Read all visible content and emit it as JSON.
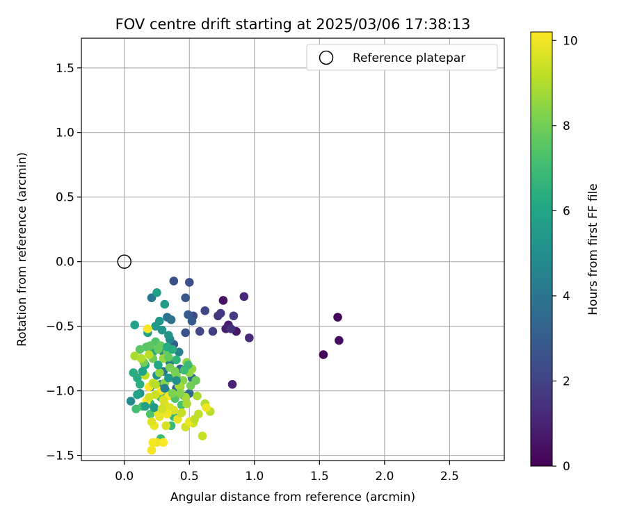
{
  "chart_data": {
    "type": "scatter",
    "title": "FOV centre drift starting at 2025/03/06 17:38:13",
    "xlabel": "Angular distance from reference (arcmin)",
    "ylabel": "Rotation from reference (arcmin)",
    "xlim": [
      -0.33,
      2.92
    ],
    "ylim": [
      -1.54,
      1.73
    ],
    "xticks": [
      0.0,
      0.5,
      1.0,
      1.5,
      2.0,
      2.5
    ],
    "xtick_labels": [
      "0.0",
      "0.5",
      "1.0",
      "1.5",
      "2.0",
      "2.5"
    ],
    "yticks": [
      -1.5,
      -1.0,
      -0.5,
      0.0,
      0.5,
      1.0,
      1.5
    ],
    "ytick_labels": [
      "−1.5",
      "−1.0",
      "−0.5",
      "0.0",
      "0.5",
      "1.0",
      "1.5"
    ],
    "grid": true,
    "legend": {
      "position": "top-right",
      "entries": [
        "Reference platepar"
      ]
    },
    "reference": {
      "name": "Reference platepar",
      "x": 0.0,
      "y": 0.0
    },
    "colorbar": {
      "label": "Hours from first FF file",
      "min": 0,
      "max": 10.2,
      "ticks": [
        0,
        2,
        4,
        6,
        8,
        10
      ],
      "tick_labels": [
        "0",
        "2",
        "4",
        "6",
        "8",
        "10"
      ],
      "colormap": "viridis"
    },
    "points": [
      [
        1.53,
        -0.72,
        0.1
      ],
      [
        1.64,
        -0.43,
        0.2
      ],
      [
        1.65,
        -0.61,
        0.3
      ],
      [
        0.76,
        -0.3,
        0.5
      ],
      [
        0.86,
        -0.54,
        0.6
      ],
      [
        0.8,
        -0.49,
        0.8
      ],
      [
        0.78,
        -0.52,
        0.9
      ],
      [
        0.83,
        -0.95,
        1.0
      ],
      [
        0.92,
        -0.27,
        1.1
      ],
      [
        0.96,
        -0.59,
        1.2
      ],
      [
        0.82,
        -0.52,
        1.4
      ],
      [
        0.72,
        -0.42,
        1.6
      ],
      [
        0.74,
        -0.4,
        1.7
      ],
      [
        0.84,
        -0.42,
        1.8
      ],
      [
        0.68,
        -0.54,
        1.9
      ],
      [
        0.58,
        -0.54,
        2.1
      ],
      [
        0.62,
        -0.38,
        2.2
      ],
      [
        0.53,
        -0.42,
        2.3
      ],
      [
        0.5,
        -0.16,
        2.4
      ],
      [
        0.38,
        -0.15,
        2.5
      ],
      [
        0.47,
        -0.55,
        2.6
      ],
      [
        0.47,
        -0.28,
        2.8
      ],
      [
        0.52,
        -0.46,
        2.9
      ],
      [
        0.49,
        -0.41,
        3.0
      ],
      [
        0.38,
        -0.64,
        3.1
      ],
      [
        0.43,
        -0.83,
        3.2
      ],
      [
        0.45,
        -0.92,
        3.3
      ],
      [
        0.4,
        -0.98,
        3.4
      ],
      [
        0.5,
        -1.02,
        3.5
      ],
      [
        0.52,
        -0.9,
        3.6
      ],
      [
        0.46,
        -1.04,
        3.7
      ],
      [
        0.36,
        -0.45,
        3.8
      ],
      [
        0.33,
        -0.43,
        3.9
      ],
      [
        0.21,
        -0.28,
        4.0
      ],
      [
        0.3,
        -0.85,
        4.1
      ],
      [
        0.28,
        -0.95,
        4.2
      ],
      [
        0.35,
        -0.78,
        4.3
      ],
      [
        0.42,
        -0.7,
        4.4
      ],
      [
        0.35,
        -0.6,
        4.6
      ],
      [
        0.3,
        -0.7,
        4.7
      ],
      [
        0.05,
        -1.08,
        4.8
      ],
      [
        0.12,
        -1.02,
        4.9
      ],
      [
        0.2,
        -0.97,
        5.0
      ],
      [
        0.25,
        -0.88,
        5.1
      ],
      [
        0.34,
        -0.57,
        5.2
      ],
      [
        0.29,
        -0.53,
        5.3
      ],
      [
        0.27,
        -0.46,
        5.4
      ],
      [
        0.24,
        -0.5,
        5.5
      ],
      [
        0.31,
        -0.33,
        5.6
      ],
      [
        0.25,
        -0.24,
        5.7
      ],
      [
        0.08,
        -0.49,
        5.8
      ],
      [
        0.18,
        -0.55,
        5.9
      ],
      [
        0.22,
        -0.7,
        6.0
      ],
      [
        0.16,
        -0.8,
        6.1
      ],
      [
        0.1,
        -0.9,
        6.2
      ],
      [
        0.07,
        -0.86,
        6.3
      ],
      [
        0.12,
        -0.95,
        6.4
      ],
      [
        0.28,
        -1.05,
        6.5
      ],
      [
        0.2,
        -1.1,
        6.6
      ],
      [
        0.32,
        -1.0,
        6.7
      ],
      [
        0.38,
        -1.2,
        6.8
      ],
      [
        0.36,
        -1.27,
        6.9
      ],
      [
        0.28,
        -1.37,
        7.0
      ],
      [
        0.09,
        -1.14,
        7.1
      ],
      [
        0.14,
        -1.12,
        7.2
      ],
      [
        0.2,
        -1.18,
        7.3
      ],
      [
        0.24,
        -0.62,
        7.4
      ],
      [
        0.17,
        -0.66,
        7.5
      ],
      [
        0.12,
        -0.68,
        7.6
      ],
      [
        0.28,
        -0.65,
        7.7
      ],
      [
        0.33,
        -0.7,
        7.8
      ],
      [
        0.22,
        -0.75,
        7.9
      ],
      [
        0.15,
        -0.78,
        8.0
      ],
      [
        0.35,
        -0.82,
        8.1
      ],
      [
        0.4,
        -0.88,
        8.2
      ],
      [
        0.45,
        -0.92,
        8.3
      ],
      [
        0.5,
        -0.86,
        8.4
      ],
      [
        0.48,
        -0.78,
        8.5
      ],
      [
        0.52,
        -0.83,
        8.6
      ],
      [
        0.43,
        -0.97,
        8.7
      ],
      [
        0.47,
        -1.05,
        8.8
      ],
      [
        0.56,
        -1.04,
        8.9
      ],
      [
        0.62,
        -1.1,
        9.0
      ],
      [
        0.66,
        -1.16,
        9.1
      ],
      [
        0.57,
        -1.18,
        9.2
      ],
      [
        0.6,
        -1.35,
        9.3
      ],
      [
        0.53,
        -1.25,
        9.4
      ],
      [
        0.47,
        -1.28,
        9.5
      ],
      [
        0.38,
        -1.15,
        9.6
      ],
      [
        0.31,
        -1.1,
        9.7
      ],
      [
        0.27,
        -1.2,
        9.8
      ],
      [
        0.23,
        -1.27,
        9.9
      ],
      [
        0.25,
        -1.4,
        10.0
      ],
      [
        0.22,
        -1.4,
        10.05
      ],
      [
        0.21,
        -1.46,
        10.1
      ],
      [
        0.3,
        -1.4,
        10.15
      ],
      [
        0.28,
        -1.0,
        10.2
      ],
      [
        0.34,
        -1.04,
        10.2
      ],
      [
        0.19,
        -0.97,
        10.2
      ],
      [
        0.17,
        -1.08,
        10.2
      ],
      [
        0.08,
        -0.73,
        8.9
      ],
      [
        0.13,
        -0.75,
        9.0
      ],
      [
        0.19,
        -0.72,
        9.1
      ],
      [
        0.16,
        -0.88,
        9.2
      ],
      [
        0.22,
        -0.94,
        9.3
      ],
      [
        0.24,
        -1.03,
        9.4
      ],
      [
        0.19,
        -1.05,
        9.5
      ],
      [
        0.3,
        -1.07,
        9.6
      ],
      [
        0.35,
        -1.13,
        9.7
      ],
      [
        0.41,
        -1.22,
        9.8
      ],
      [
        0.5,
        -1.24,
        9.9
      ],
      [
        0.63,
        -1.13,
        10.0
      ],
      [
        0.33,
        -1.18,
        10.0
      ],
      [
        0.26,
        -1.17,
        9.9
      ],
      [
        0.18,
        -0.52,
        10.1
      ],
      [
        0.3,
        -0.75,
        8.6
      ],
      [
        0.36,
        -0.9,
        8.7
      ],
      [
        0.42,
        -0.96,
        8.8
      ],
      [
        0.27,
        -0.86,
        8.5
      ],
      [
        0.31,
        -0.94,
        8.4
      ],
      [
        0.39,
        -1.06,
        7.4
      ],
      [
        0.44,
        -1.11,
        7.2
      ],
      [
        0.46,
        -0.84,
        7.0
      ],
      [
        0.49,
        -0.8,
        6.9
      ],
      [
        0.4,
        -0.76,
        6.6
      ],
      [
        0.37,
        -0.68,
        6.4
      ],
      [
        0.33,
        -0.66,
        6.2
      ],
      [
        0.26,
        -0.8,
        6.1
      ],
      [
        0.14,
        -0.85,
        6.0
      ],
      [
        0.1,
        -1.03,
        5.9
      ],
      [
        0.16,
        -1.12,
        5.7
      ],
      [
        0.23,
        -1.13,
        5.5
      ],
      [
        0.34,
        -0.9,
        5.3
      ],
      [
        0.4,
        -0.92,
        5.0
      ],
      [
        0.31,
        -0.98,
        4.5
      ],
      [
        0.37,
        -1.02,
        8.2
      ],
      [
        0.43,
        -1.02,
        8.3
      ],
      [
        0.51,
        -0.96,
        8.0
      ],
      [
        0.55,
        -0.92,
        7.9
      ],
      [
        0.26,
        -0.68,
        7.8
      ],
      [
        0.2,
        -0.65,
        7.6
      ],
      [
        0.24,
        -0.95,
        9.1
      ],
      [
        0.29,
        -1.14,
        9.5
      ],
      [
        0.21,
        -1.24,
        9.7
      ],
      [
        0.32,
        -1.27,
        9.6
      ],
      [
        0.44,
        -1.17,
        9.3
      ],
      [
        0.54,
        -1.22,
        9.2
      ],
      [
        0.48,
        -1.1,
        8.9
      ],
      [
        0.39,
        -0.85,
        8.1
      ],
      [
        0.34,
        -0.74,
        7.7
      ]
    ]
  }
}
